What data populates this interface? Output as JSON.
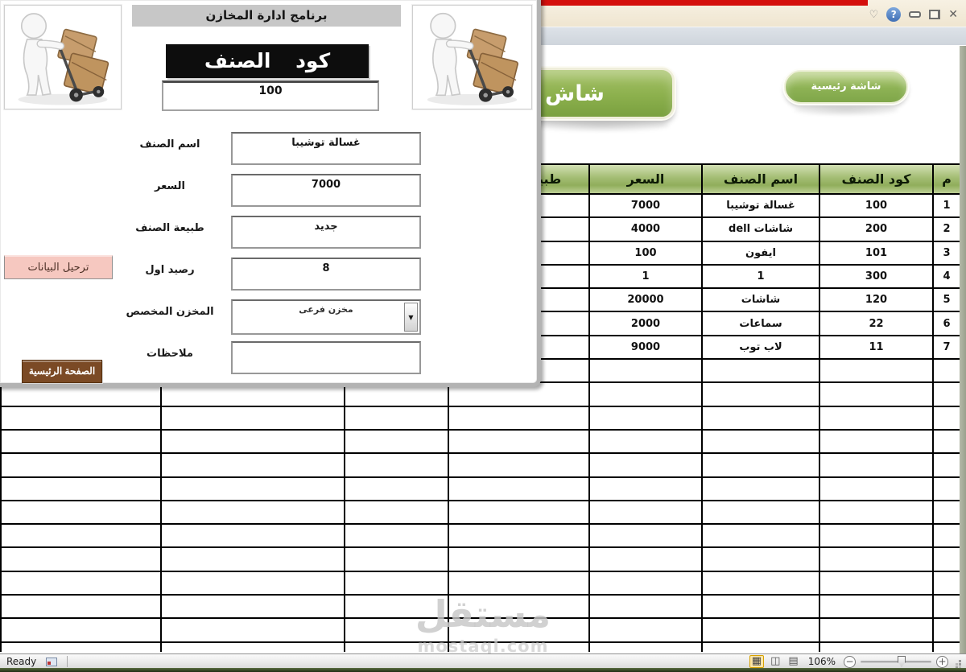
{
  "titlebar": {
    "help_glyph": "?"
  },
  "screen_buttons": {
    "partial_label": "شاش",
    "main_label": "شاشة رئيسية"
  },
  "form": {
    "title": "برنامج ادارة المخازن",
    "code_header": "كود الصنف",
    "code_value": "100",
    "fields": [
      {
        "label": "اسم الصنف",
        "value": "غسالة توشيبا",
        "type": "text"
      },
      {
        "label": "السعر",
        "value": "7000",
        "type": "text"
      },
      {
        "label": "طبيعة الصنف",
        "value": "جديد",
        "type": "text"
      },
      {
        "label": "رصيد اول",
        "value": "8",
        "type": "text"
      },
      {
        "label": "المخزن المخصص",
        "value": "مخزن فرعى",
        "type": "combo"
      },
      {
        "label": "ملاحظات",
        "value": "",
        "type": "text"
      }
    ],
    "transfer_button": "ترحيل البيانات",
    "home_button": "الصفحة الرئيسية"
  },
  "table": {
    "headers_rtl": [
      "م",
      "كود الصنف",
      "اسم الصنف",
      "السعر",
      "طبيعة الصنف"
    ],
    "rows": [
      {
        "num": "1",
        "code": "100",
        "name": "غسالة توشيبا",
        "price": "7000"
      },
      {
        "num": "2",
        "code": "200",
        "name": "شاشات dell",
        "price": "4000"
      },
      {
        "num": "3",
        "code": "101",
        "name": "ايفون",
        "price": "100"
      },
      {
        "num": "4",
        "code": "300",
        "name": "1",
        "price": "1"
      },
      {
        "num": "5",
        "code": "120",
        "name": "شاشات",
        "price": "20000"
      },
      {
        "num": "6",
        "code": "22",
        "name": "سماعات",
        "price": "2000"
      },
      {
        "num": "7",
        "code": "11",
        "name": "لاب توب",
        "price": "9000"
      }
    ],
    "empty_row_count": 13
  },
  "status_bar": {
    "ready": "Ready",
    "zoom": "106%"
  },
  "watermark": {
    "name": "مستقل",
    "domain": "mostaql.com"
  },
  "colors": {
    "accent_green": "#8cb04d",
    "header_green": "#9cb96a",
    "button_pink": "#f6c8c0",
    "button_brown": "#7b4a25",
    "red_bar": "#d40f0c"
  }
}
